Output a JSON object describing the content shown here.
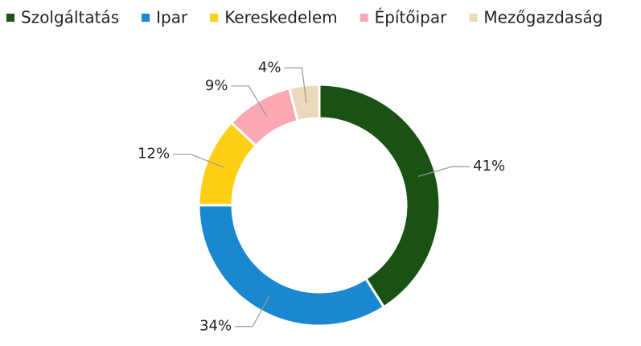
{
  "chart_data": {
    "type": "donut",
    "categories": [
      "Szolgáltatás",
      "Ipar",
      "Kereskedelem",
      "Építőipar",
      "Mezőgazdaság"
    ],
    "values": [
      41,
      34,
      12,
      9,
      4
    ],
    "value_labels": [
      "41%",
      "34%",
      "12%",
      "9%",
      "4%"
    ],
    "colors": [
      "#1a5214",
      "#1a88d0",
      "#fdd017",
      "#f9a8b4",
      "#ecd8bc"
    ],
    "legend": "top-left"
  }
}
